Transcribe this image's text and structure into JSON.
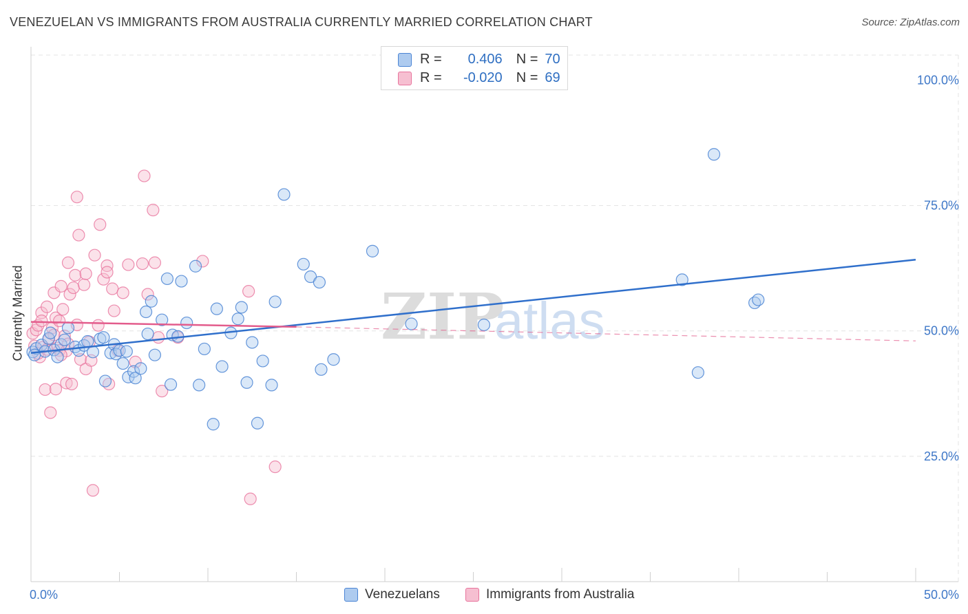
{
  "header": {
    "title": "VENEZUELAN VS IMMIGRANTS FROM AUSTRALIA CURRENTLY MARRIED CORRELATION CHART",
    "source": "Source: ZipAtlas.com"
  },
  "watermark": {
    "zip": "ZIP",
    "atlas": "atlas"
  },
  "legend_top": {
    "rows": [
      {
        "r_label": "R =",
        "r_value": "0.406",
        "n_label": "N =",
        "n_value": "70"
      },
      {
        "r_label": "R =",
        "r_value": "-0.020",
        "n_label": "N =",
        "n_value": "69"
      }
    ]
  },
  "colors": {
    "blue": "#4a84d4",
    "blue_fill": "#aecbef",
    "blue_line": "#2f6fcb",
    "pink": "#e8739c",
    "pink_fill": "#f6bfd1",
    "pink_line": "#e35c8c",
    "axis_text": "#3f78c8",
    "grid": "#e3e3e3"
  },
  "chart_data": {
    "type": "scatter",
    "title": "VENEZUELAN VS IMMIGRANTS FROM AUSTRALIA CURRENTLY MARRIED CORRELATION CHART",
    "xlabel": "",
    "ylabel": "Currently Married",
    "xlim": [
      0,
      50
    ],
    "ylim": [
      0,
      105
    ],
    "x_tick_labels": [
      "0.0%",
      "50.0%"
    ],
    "y_ticks": [
      25,
      50,
      75,
      100
    ],
    "y_tick_labels": [
      "25.0%",
      "50.0%",
      "75.0%",
      "100.0%"
    ],
    "grid": true,
    "legend_position": "bottom",
    "series": [
      {
        "name": "Venezuelans",
        "r": 0.406,
        "n": 70,
        "trend": {
          "x": [
            0,
            50
          ],
          "y": [
            45.6,
            64.2
          ],
          "style": "solid"
        },
        "points": [
          [
            0.1,
            45.8
          ],
          [
            0.3,
            46.5
          ],
          [
            0.6,
            47.2
          ],
          [
            0.8,
            45.9
          ],
          [
            1.0,
            48.5
          ],
          [
            1.1,
            49.6
          ],
          [
            1.3,
            46.2
          ],
          [
            1.5,
            44.8
          ],
          [
            1.7,
            47.3
          ],
          [
            1.9,
            48.2
          ],
          [
            2.1,
            50.6
          ],
          [
            2.5,
            46.8
          ],
          [
            2.7,
            46.1
          ],
          [
            3.0,
            47.1
          ],
          [
            3.2,
            47.9
          ],
          [
            3.5,
            45.8
          ],
          [
            3.9,
            48.4
          ],
          [
            4.1,
            48.7
          ],
          [
            4.2,
            40.0
          ],
          [
            4.5,
            45.6
          ],
          [
            4.7,
            47.3
          ],
          [
            4.8,
            45.4
          ],
          [
            5.0,
            46.1
          ],
          [
            5.2,
            43.5
          ],
          [
            5.4,
            45.9
          ],
          [
            5.5,
            40.8
          ],
          [
            5.8,
            41.9
          ],
          [
            5.9,
            40.6
          ],
          [
            6.2,
            42.5
          ],
          [
            6.5,
            53.8
          ],
          [
            6.6,
            49.4
          ],
          [
            6.8,
            55.9
          ],
          [
            7.0,
            45.2
          ],
          [
            7.4,
            52.2
          ],
          [
            7.7,
            60.4
          ],
          [
            7.9,
            39.3
          ],
          [
            8.0,
            49.2
          ],
          [
            8.3,
            48.9
          ],
          [
            8.5,
            59.9
          ],
          [
            8.8,
            51.6
          ],
          [
            9.3,
            62.9
          ],
          [
            9.5,
            39.2
          ],
          [
            9.8,
            46.4
          ],
          [
            10.3,
            31.4
          ],
          [
            10.5,
            54.4
          ],
          [
            10.8,
            42.9
          ],
          [
            11.3,
            49.6
          ],
          [
            11.7,
            52.4
          ],
          [
            11.9,
            54.7
          ],
          [
            12.2,
            39.7
          ],
          [
            12.5,
            47.7
          ],
          [
            12.8,
            31.6
          ],
          [
            13.1,
            44.0
          ],
          [
            13.6,
            39.2
          ],
          [
            13.8,
            55.8
          ],
          [
            14.3,
            77.2
          ],
          [
            15.4,
            63.3
          ],
          [
            15.8,
            60.8
          ],
          [
            16.3,
            59.7
          ],
          [
            16.4,
            42.3
          ],
          [
            17.1,
            44.3
          ],
          [
            19.3,
            65.9
          ],
          [
            21.5,
            51.4
          ],
          [
            25.6,
            51.2
          ],
          [
            36.8,
            60.2
          ],
          [
            37.7,
            41.7
          ],
          [
            38.6,
            85.2
          ],
          [
            40.9,
            55.6
          ],
          [
            41.1,
            56.2
          ],
          [
            0.2,
            45.2
          ]
        ]
      },
      {
        "name": "Immigrants from Australia",
        "r": -0.02,
        "n": 69,
        "trend": {
          "x": [
            0,
            15
          ],
          "y": [
            51.8,
            50.8
          ],
          "style": "solid",
          "extended": {
            "x": [
              15,
              50
            ],
            "y": [
              50.8,
              48.0
            ],
            "style": "dashed"
          }
        },
        "points": [
          [
            0.1,
            49.5
          ],
          [
            0.2,
            47.0
          ],
          [
            0.3,
            50.2
          ],
          [
            0.4,
            51.1
          ],
          [
            0.5,
            44.8
          ],
          [
            0.6,
            53.6
          ],
          [
            0.7,
            46.8
          ],
          [
            0.8,
            38.3
          ],
          [
            0.9,
            54.8
          ],
          [
            1.0,
            48.3
          ],
          [
            1.1,
            33.7
          ],
          [
            1.2,
            50.6
          ],
          [
            1.3,
            57.6
          ],
          [
            1.4,
            52.6
          ],
          [
            1.4,
            38.4
          ],
          [
            1.5,
            46.6
          ],
          [
            1.6,
            46.1
          ],
          [
            1.6,
            52.0
          ],
          [
            1.7,
            58.9
          ],
          [
            1.8,
            54.3
          ],
          [
            1.9,
            49.0
          ],
          [
            2.0,
            46.0
          ],
          [
            2.0,
            39.6
          ],
          [
            2.1,
            63.6
          ],
          [
            2.2,
            57.3
          ],
          [
            2.3,
            39.4
          ],
          [
            2.4,
            58.6
          ],
          [
            2.5,
            61.1
          ],
          [
            2.6,
            51.2
          ],
          [
            2.6,
            76.7
          ],
          [
            2.7,
            69.1
          ],
          [
            2.8,
            44.3
          ],
          [
            3.0,
            59.2
          ],
          [
            3.1,
            61.4
          ],
          [
            3.1,
            42.4
          ],
          [
            3.3,
            47.8
          ],
          [
            3.4,
            44.1
          ],
          [
            3.5,
            18.2
          ],
          [
            3.6,
            65.1
          ],
          [
            3.8,
            51.1
          ],
          [
            3.9,
            71.2
          ],
          [
            4.1,
            60.3
          ],
          [
            4.3,
            63.0
          ],
          [
            4.3,
            61.7
          ],
          [
            4.4,
            39.4
          ],
          [
            4.6,
            58.4
          ],
          [
            4.7,
            54.0
          ],
          [
            4.9,
            46.1
          ],
          [
            5.2,
            57.6
          ],
          [
            5.5,
            63.2
          ],
          [
            5.9,
            43.8
          ],
          [
            6.3,
            63.4
          ],
          [
            6.4,
            80.9
          ],
          [
            6.6,
            57.3
          ],
          [
            6.9,
            74.1
          ],
          [
            7.0,
            63.6
          ],
          [
            7.2,
            48.7
          ],
          [
            7.4,
            38.0
          ],
          [
            8.3,
            48.7
          ],
          [
            9.7,
            63.9
          ],
          [
            12.3,
            57.9
          ],
          [
            12.4,
            16.5
          ],
          [
            13.8,
            22.9
          ],
          [
            0.4,
            45.5
          ],
          [
            0.9,
            46.3
          ],
          [
            1.7,
            45.2
          ],
          [
            2.1,
            47.4
          ],
          [
            1.3,
            49.2
          ],
          [
            0.6,
            52.0
          ]
        ]
      }
    ]
  }
}
